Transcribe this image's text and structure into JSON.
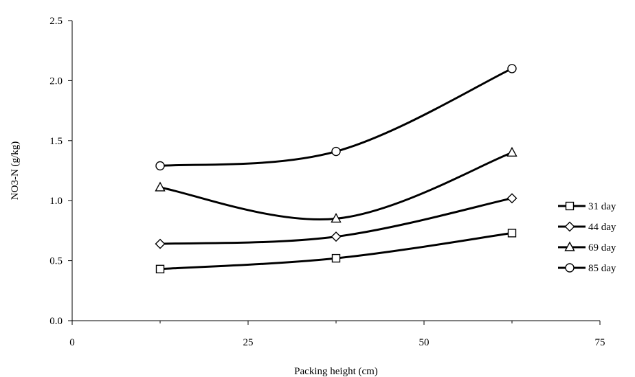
{
  "chart_data": {
    "type": "line",
    "title": "",
    "xlabel": "Packing height (cm)",
    "ylabel": "NO3-N (g/kg)",
    "xlim": [
      0,
      75
    ],
    "ylim": [
      0,
      2.5
    ],
    "xticks": [
      0,
      25,
      50,
      75
    ],
    "yticks": [
      0.0,
      0.5,
      1.0,
      1.5,
      2.0,
      2.5
    ],
    "xtick_labels": [
      "0",
      "25",
      "50",
      "75"
    ],
    "ytick_labels": [
      "0.0",
      "0.5",
      "1.0",
      "1.5",
      "2.0",
      "2.5"
    ],
    "grid": false,
    "legend_position": "right",
    "x": [
      12.5,
      37.5,
      62.5
    ],
    "series": [
      {
        "name": "31 day",
        "marker": "square",
        "values": [
          0.43,
          0.52,
          0.73
        ]
      },
      {
        "name": "44 day",
        "marker": "diamond",
        "values": [
          0.64,
          0.7,
          1.02
        ]
      },
      {
        "name": "69 day",
        "marker": "triangle",
        "values": [
          1.11,
          0.85,
          1.4
        ]
      },
      {
        "name": "85  day",
        "marker": "circle",
        "values": [
          1.29,
          1.41,
          2.1
        ]
      }
    ]
  }
}
